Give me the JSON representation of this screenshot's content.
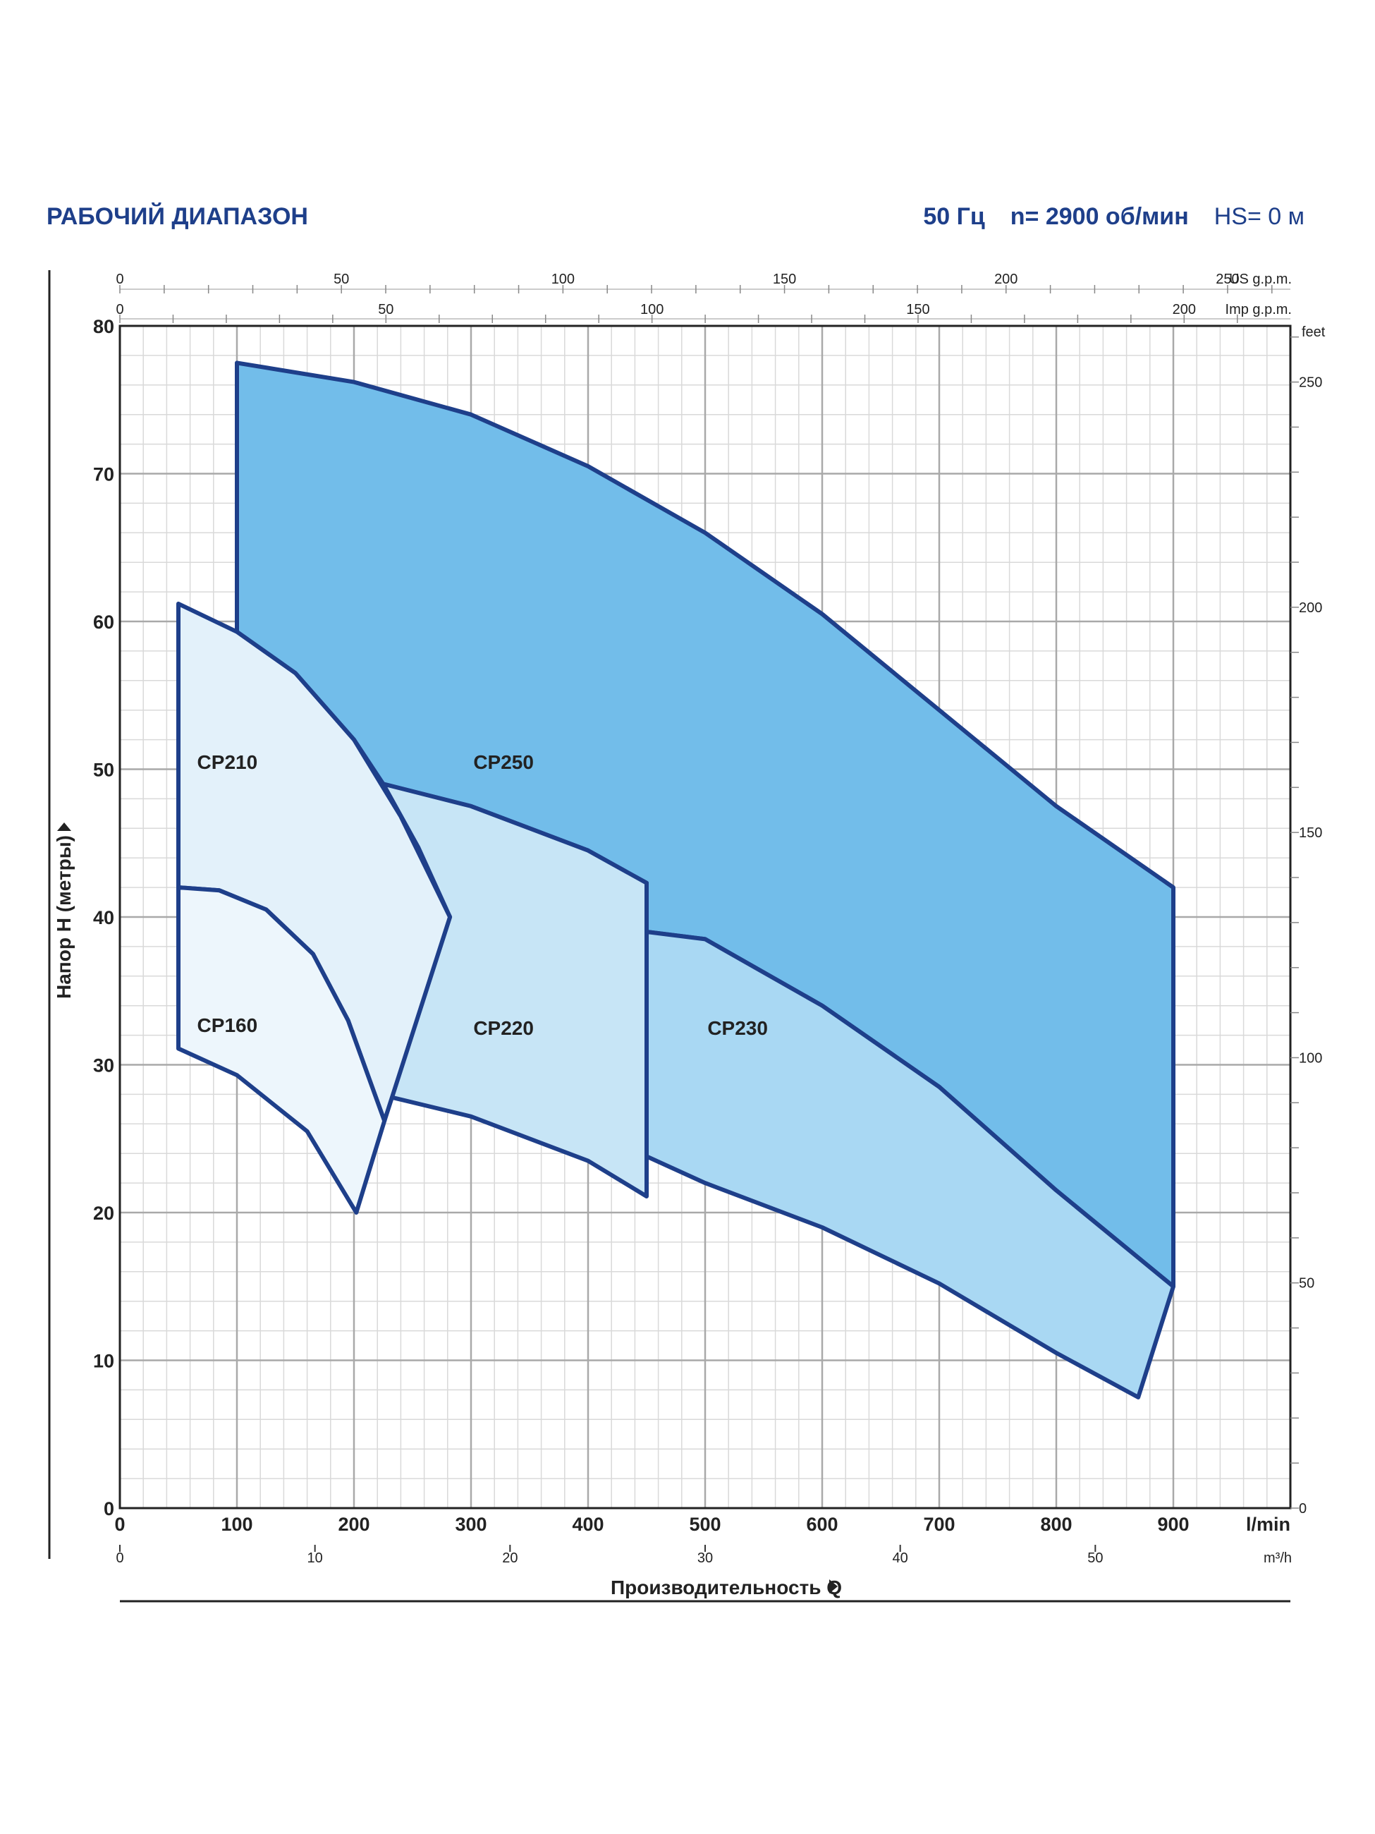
{
  "header": {
    "title": "РАБОЧИЙ ДИАПАЗОН",
    "frequency": "50 Гц",
    "speed": "n= 2900 об/мин",
    "hs": "HS= 0 м"
  },
  "chart_data": {
    "type": "area",
    "title": "РАБОЧИЙ ДИАПАЗОН",
    "xlabel": "Производительность Q",
    "ylabel": "Напор H (метры)",
    "xlim": [
      0,
      1000
    ],
    "ylim": [
      0,
      80
    ],
    "x_ticks": [
      0,
      100,
      200,
      300,
      400,
      500,
      600,
      700,
      800,
      900
    ],
    "x_unit": "l/min",
    "y_ticks": [
      0,
      10,
      20,
      30,
      40,
      50,
      60,
      70,
      80
    ],
    "secondary_axes": {
      "m3h": {
        "unit": "m³/h",
        "ticks": [
          0,
          10,
          20,
          30,
          40,
          50
        ]
      },
      "us_gpm": {
        "unit": "US g.p.m.",
        "ticks": [
          0,
          50,
          100,
          150,
          200,
          250
        ]
      },
      "imp_gpm": {
        "unit": "Imp g.p.m.",
        "ticks": [
          0,
          50,
          100,
          150,
          200
        ]
      },
      "feet": {
        "unit": "feet",
        "ticks": [
          0,
          50,
          100,
          150,
          200,
          250
        ]
      }
    },
    "grid": true,
    "series": [
      {
        "name": "CP250",
        "color": "#72bdea",
        "label_at": [
          302,
          50.5
        ],
        "polygon": [
          [
            100,
            77.5
          ],
          [
            200,
            76.2
          ],
          [
            300,
            74.0
          ],
          [
            400,
            70.5
          ],
          [
            500,
            66.0
          ],
          [
            600,
            60.5
          ],
          [
            700,
            54.0
          ],
          [
            800,
            47.5
          ],
          [
            900,
            42.0
          ],
          [
            900,
            15.0
          ],
          [
            800,
            21.5
          ],
          [
            700,
            28.5
          ],
          [
            600,
            34.0
          ],
          [
            500,
            38.5
          ],
          [
            450,
            39.0
          ],
          [
            450,
            42.3
          ],
          [
            400,
            44.5
          ],
          [
            300,
            47.5
          ],
          [
            225,
            49.0
          ],
          [
            200,
            52.0
          ],
          [
            150,
            56.5
          ],
          [
            100,
            59.3
          ]
        ]
      },
      {
        "name": "CP230",
        "color": "#a9d8f3",
        "label_at": [
          502,
          32.5
        ],
        "polygon": [
          [
            450,
            39.0
          ],
          [
            500,
            38.5
          ],
          [
            600,
            34.0
          ],
          [
            700,
            28.5
          ],
          [
            800,
            21.5
          ],
          [
            900,
            15.0
          ],
          [
            870,
            7.5
          ],
          [
            800,
            10.5
          ],
          [
            700,
            15.2
          ],
          [
            600,
            19.0
          ],
          [
            500,
            22.0
          ],
          [
            450,
            23.8
          ]
        ]
      },
      {
        "name": "CP220",
        "color": "#c7e5f6",
        "label_at": [
          302,
          32.5
        ],
        "polygon": [
          [
            225,
            49.0
          ],
          [
            300,
            47.5
          ],
          [
            400,
            44.5
          ],
          [
            450,
            42.3
          ],
          [
            450,
            21.1
          ],
          [
            400,
            23.5
          ],
          [
            300,
            26.5
          ],
          [
            232,
            27.8
          ],
          [
            282,
            40.0
          ],
          [
            255,
            44.7
          ]
        ]
      },
      {
        "name": "CP210",
        "color": "#e3f1fa",
        "label_at": [
          66,
          50.5
        ],
        "polygon": [
          [
            50,
            61.2
          ],
          [
            100,
            59.3
          ],
          [
            150,
            56.5
          ],
          [
            200,
            52.0
          ],
          [
            240,
            46.8
          ],
          [
            282,
            40.0
          ],
          [
            226,
            26.2
          ],
          [
            195,
            33.0
          ],
          [
            165,
            37.5
          ],
          [
            125,
            40.5
          ],
          [
            85,
            41.8
          ],
          [
            50,
            42.0
          ]
        ]
      },
      {
        "name": "CP160",
        "color": "#edf6fc",
        "label_at": [
          66,
          32.7
        ],
        "polygon": [
          [
            50,
            42.0
          ],
          [
            85,
            41.8
          ],
          [
            125,
            40.5
          ],
          [
            165,
            37.5
          ],
          [
            195,
            33.0
          ],
          [
            226,
            26.2
          ],
          [
            202,
            20.0
          ],
          [
            160,
            25.5
          ],
          [
            100,
            29.3
          ],
          [
            50,
            31.1
          ]
        ]
      }
    ]
  }
}
